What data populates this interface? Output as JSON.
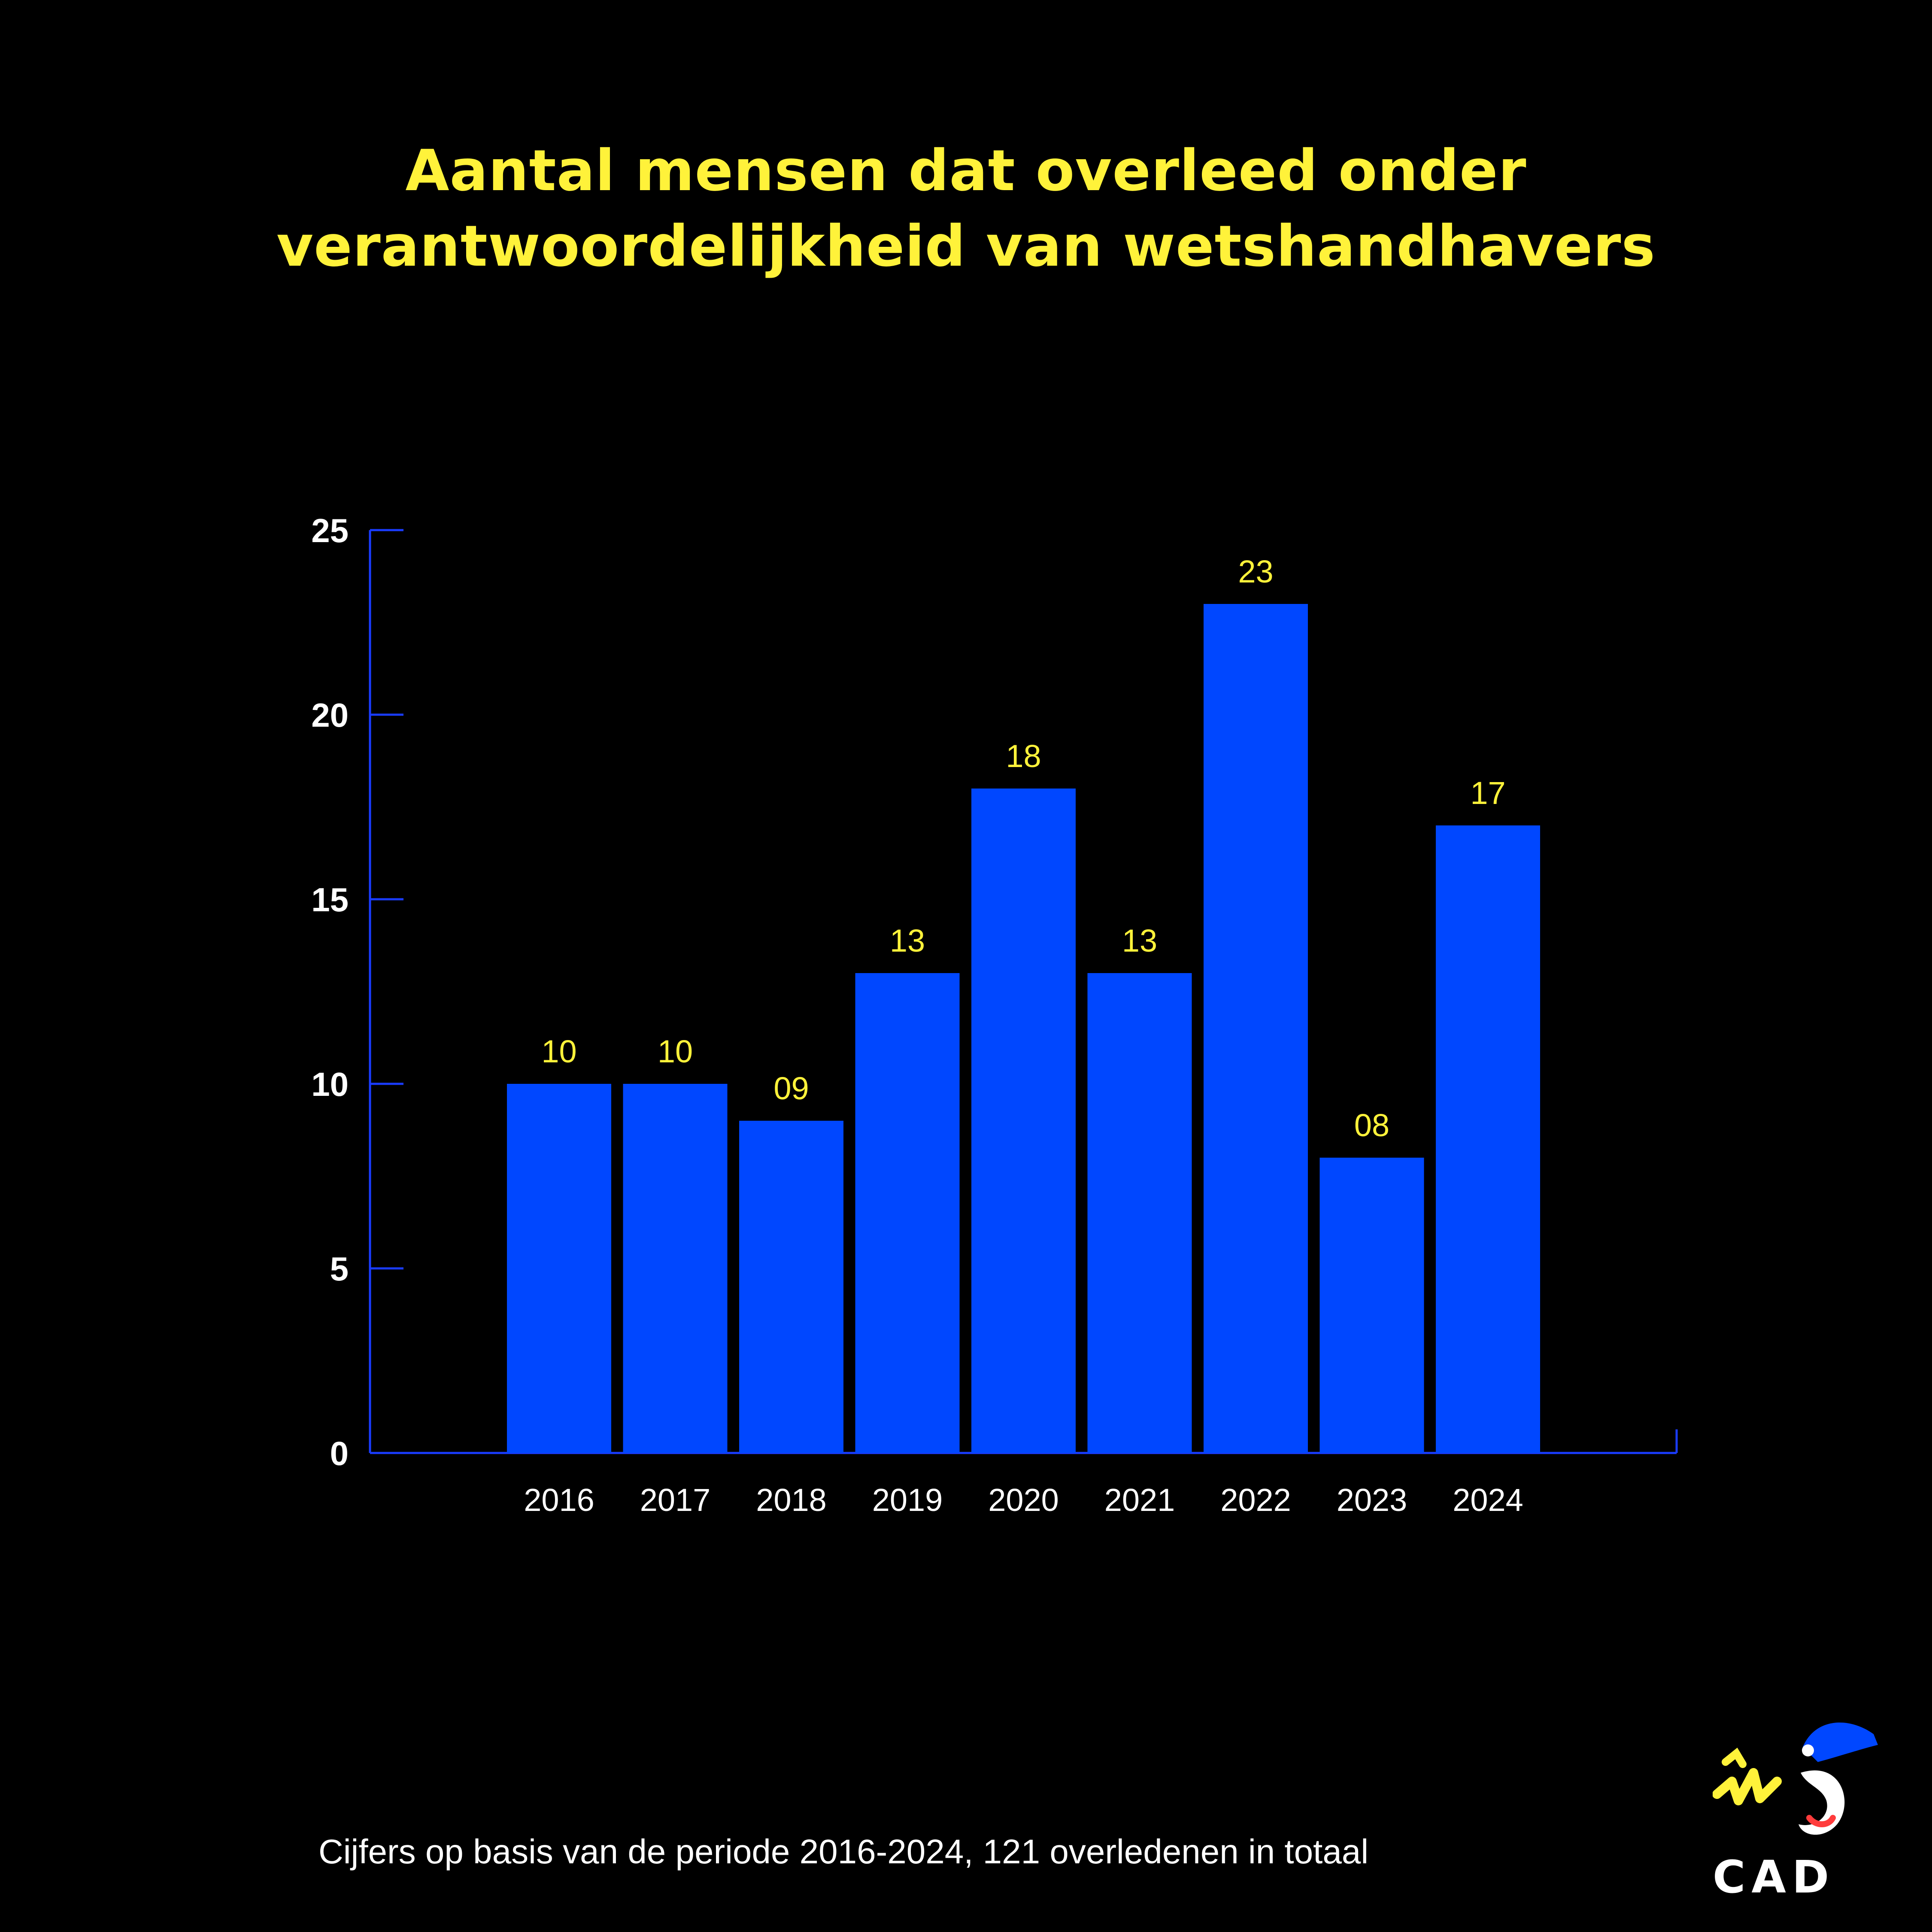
{
  "title_line1": "Aantal mensen dat overleed onder",
  "title_line2": "verantwoordelijkheid van wetshandhavers",
  "footnote": "Cijfers op basis van de periode 2016-2024, 121 overledenen in totaal",
  "logo": {
    "text": "CAD",
    "icon": "cad-mascot-icon"
  },
  "colors": {
    "background": "#000000",
    "bar": "#0047ff",
    "axis": "#1a3cff",
    "accent": "#fff23a",
    "text": "#ffffff"
  },
  "chart_data": {
    "type": "bar",
    "title": "Aantal mensen dat overleed onder verantwoordelijkheid van wetshandhavers",
    "categories": [
      "2016",
      "2017",
      "2018",
      "2019",
      "2020",
      "2021",
      "2022",
      "2023",
      "2024"
    ],
    "values": [
      10,
      10,
      9,
      13,
      18,
      13,
      23,
      8,
      17
    ],
    "data_labels": [
      "10",
      "10",
      "09",
      "13",
      "18",
      "13",
      "23",
      "08",
      "17"
    ],
    "yticks": [
      0,
      5,
      10,
      15,
      20,
      25
    ],
    "ylim": [
      0,
      25
    ],
    "xlabel": "",
    "ylabel": "",
    "grid": false,
    "legend": "none"
  }
}
